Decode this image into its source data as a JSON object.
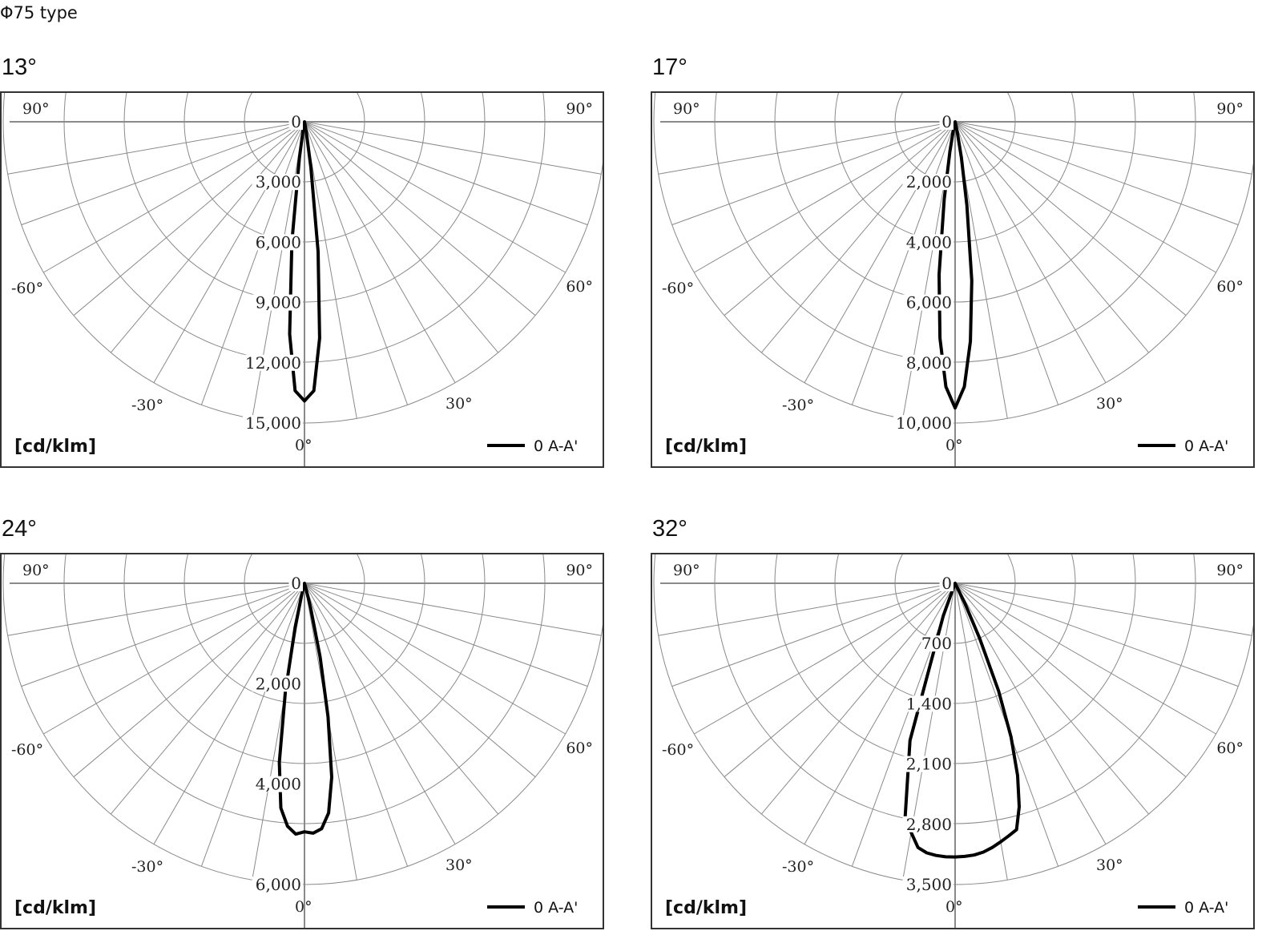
{
  "page_title": "Φ75 type",
  "chart_data": [
    {
      "type": "polar",
      "title": "13°",
      "unit_label": "[cd/klm]",
      "legend": [
        "0 A-A'"
      ],
      "angle_labels": {
        "left_top": "90°",
        "right_top": "90°",
        "left_60": "-60°",
        "right_60": "60°",
        "left_30": "-30°",
        "right_30": "30°",
        "bottom": "0°"
      },
      "radial_ticks": [
        "0",
        "3,000",
        "6,000",
        "9,000",
        "12,000",
        "15,000"
      ],
      "rmax": 15000,
      "series": [
        {
          "name": "0 A-A'",
          "angles": [
            -90,
            -60,
            -40,
            -30,
            -20,
            -15,
            -10,
            -8,
            -6,
            -4,
            -2,
            0,
            2,
            4,
            6,
            8,
            10,
            15,
            20,
            30,
            40,
            60,
            90
          ],
          "values": [
            0,
            0,
            0,
            0,
            0,
            20,
            300,
            1800,
            6000,
            10600,
            13400,
            13900,
            13400,
            10800,
            6500,
            2300,
            500,
            30,
            0,
            0,
            0,
            0,
            0
          ]
        }
      ]
    },
    {
      "type": "polar",
      "title": "17°",
      "unit_label": "[cd/klm]",
      "legend": [
        "0 A-A'"
      ],
      "angle_labels": {
        "left_top": "90°",
        "right_top": "90°",
        "left_60": "-60°",
        "right_60": "60°",
        "left_30": "-30°",
        "right_30": "30°",
        "bottom": "0°"
      },
      "radial_ticks": [
        "0",
        "2,000",
        "4,000",
        "6,000",
        "8,000",
        "10,000"
      ],
      "rmax": 10000,
      "series": [
        {
          "name": "0 A-A'",
          "angles": [
            -90,
            -60,
            -40,
            -30,
            -20,
            -15,
            -12,
            -10,
            -8,
            -6,
            -4,
            -2,
            0,
            2,
            4,
            6,
            8,
            10,
            12,
            15,
            20,
            30,
            40,
            60,
            90
          ],
          "values": [
            0,
            0,
            0,
            0,
            0,
            30,
            300,
            1000,
            2600,
            5100,
            7200,
            8800,
            9500,
            8800,
            7300,
            5300,
            2800,
            1200,
            350,
            40,
            0,
            0,
            0,
            0,
            0
          ]
        }
      ]
    },
    {
      "type": "polar",
      "title": "24°",
      "unit_label": "[cd/klm]",
      "legend": [
        "0 A-A'"
      ],
      "angle_labels": {
        "left_top": "90°",
        "right_top": "90°",
        "left_60": "-60°",
        "right_60": "60°",
        "left_30": "-30°",
        "right_30": "30°",
        "bottom": "0°"
      },
      "radial_ticks": [
        "0",
        "2,000",
        "4,000",
        "6,000"
      ],
      "rmax": 6000,
      "series": [
        {
          "name": "0 A-A'",
          "angles": [
            -90,
            -60,
            -40,
            -30,
            -20,
            -16,
            -14,
            -12,
            -10,
            -8,
            -6,
            -4,
            -2,
            0,
            2,
            4,
            6,
            8,
            10,
            12,
            14,
            16,
            20,
            30,
            40,
            60,
            90
          ],
          "values": [
            0,
            0,
            0,
            0,
            0,
            20,
            200,
            900,
            2200,
            3600,
            4500,
            4850,
            5000,
            4950,
            4980,
            4900,
            4600,
            3900,
            2700,
            1500,
            500,
            80,
            0,
            0,
            0,
            0,
            0
          ]
        }
      ]
    },
    {
      "type": "polar",
      "title": "32°",
      "unit_label": "[cd/klm]",
      "legend": [
        "0 A-A'"
      ],
      "angle_labels": {
        "left_top": "90°",
        "right_top": "90°",
        "left_60": "-60°",
        "right_60": "60°",
        "left_30": "-30°",
        "right_30": "30°",
        "bottom": "0°"
      },
      "radial_ticks": [
        "0",
        "700",
        "1,400",
        "2,100",
        "2,800",
        "3,500"
      ],
      "rmax": 3500,
      "series": [
        {
          "name": "0 A-A'",
          "angles": [
            -90,
            -60,
            -40,
            -30,
            -24,
            -22,
            -20,
            -16,
            -12,
            -8,
            -6,
            -4,
            -2,
            0,
            2,
            4,
            6,
            8,
            10,
            12,
            14,
            16,
            18,
            20,
            22,
            24,
            26,
            30,
            40,
            60,
            90
          ],
          "values": [
            0,
            0,
            0,
            0,
            0,
            30,
            400,
            1900,
            2800,
            3100,
            3150,
            3170,
            3180,
            3180,
            3175,
            3165,
            3140,
            3100,
            3050,
            3000,
            2950,
            2700,
            2350,
            1900,
            1350,
            700,
            250,
            0,
            0,
            0,
            0
          ]
        }
      ]
    }
  ]
}
